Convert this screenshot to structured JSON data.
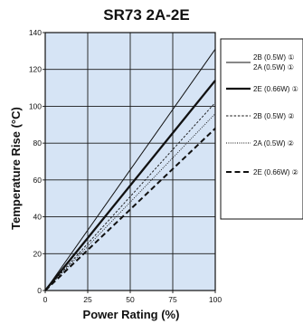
{
  "chart_data": {
    "type": "line",
    "title": "SR73 2A-2E",
    "xlabel": "Power Rating (%)",
    "ylabel": "Temperature Rise (°C)",
    "xlim": [
      0,
      100
    ],
    "ylim": [
      0,
      140
    ],
    "xticks": [
      0,
      25,
      50,
      75,
      100
    ],
    "yticks": [
      0,
      20,
      40,
      60,
      80,
      100,
      120,
      140
    ],
    "grid": true,
    "plot_background": "#d6e4f5",
    "legend_position": "right",
    "series": [
      {
        "name": "2B (0.5W) ① 2A (0.5W) ①",
        "legend_lines": [
          "2B (0.5W) ①",
          "2A (0.5W) ①"
        ],
        "style": "solid-thin",
        "x": [
          0,
          100
        ],
        "y": [
          0,
          131
        ]
      },
      {
        "name": "2E (0.66W) ①",
        "legend_lines": [
          "2E (0.66W) ①"
        ],
        "style": "solid-thick",
        "x": [
          0,
          100
        ],
        "y": [
          0,
          114
        ]
      },
      {
        "name": "2B (0.5W) ②",
        "legend_lines": [
          "2B (0.5W) ②"
        ],
        "style": "dashed-fine",
        "x": [
          0,
          100
        ],
        "y": [
          0,
          102
        ]
      },
      {
        "name": "2A (0.5W) ②",
        "legend_lines": [
          "2A (0.5W) ②"
        ],
        "style": "dotted",
        "x": [
          0,
          100
        ],
        "y": [
          0,
          96
        ]
      },
      {
        "name": "2E (0.66W) ②",
        "legend_lines": [
          "2E (0.66W) ②"
        ],
        "style": "dashed-thick",
        "x": [
          0,
          100
        ],
        "y": [
          0,
          88
        ]
      }
    ]
  }
}
